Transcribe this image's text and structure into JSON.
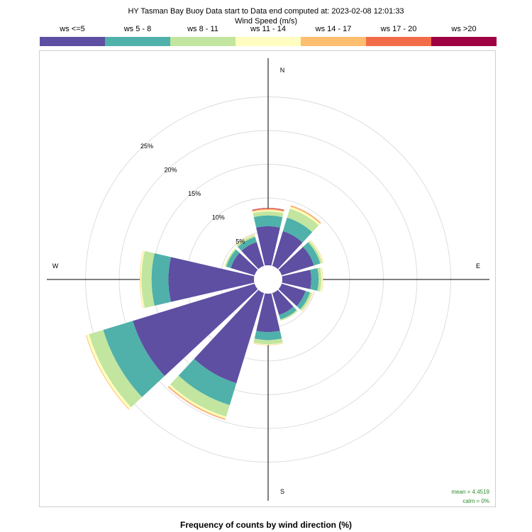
{
  "chart_data": {
    "type": "wind-rose",
    "title": "HY Tasman Bay Buoy Data start to Data end computed at: 2023-02-08 12:01:33",
    "legend_title": "Wind Speed (m/s)",
    "xlabel": "Frequency of counts by wind direction (%)",
    "legend_position": "top",
    "grid": true,
    "radial_unit": "%",
    "radial_max": 27,
    "radial_ticks": [
      5,
      10,
      15,
      20,
      25
    ],
    "radial_tick_labels": [
      "5%",
      "10%",
      "15%",
      "20%",
      "25%"
    ],
    "calm_radius_percent": 2.1,
    "compass_labels": {
      "N": "N",
      "E": "E",
      "S": "S",
      "W": "W"
    },
    "bins": [
      {
        "label": "ws <=5",
        "color": "#5E4FA2"
      },
      {
        "label": "ws 5 - 8",
        "color": "#4FB1AA"
      },
      {
        "label": "ws 8 - 11",
        "color": "#C2E59F"
      },
      {
        "label": "ws 11 - 14",
        "color": "#FFFDBF"
      },
      {
        "label": "ws 14 - 17",
        "color": "#FDBE6F"
      },
      {
        "label": "ws 17 - 20",
        "color": "#F26C4A"
      },
      {
        "label": "ws >20",
        "color": "#9E0142"
      }
    ],
    "directions": [
      0,
      30,
      60,
      90,
      120,
      150,
      180,
      210,
      240,
      270,
      300,
      330
    ],
    "cumulative_percent": [
      [
        5.8,
        7.4,
        8.0,
        8.2,
        8.35,
        8.45,
        8.5
      ],
      [
        5.4,
        7.5,
        8.9,
        9.2,
        9.35,
        9.4,
        9.4
      ],
      [
        5.0,
        6.0,
        6.3,
        6.45,
        6.5,
        6.5,
        6.5
      ],
      [
        4.3,
        5.4,
        5.8,
        6.0,
        6.05,
        6.05,
        6.05
      ],
      [
        3.7,
        4.4,
        4.7,
        4.8,
        4.85,
        4.85,
        4.85
      ],
      [
        3.4,
        4.1,
        4.3,
        4.35,
        4.35,
        4.35,
        4.35
      ],
      [
        5.7,
        6.9,
        7.5,
        7.6,
        7.65,
        7.65,
        7.65
      ],
      [
        14.0,
        17.4,
        19.2,
        19.5,
        19.65,
        19.7,
        19.7
      ],
      [
        18.9,
        23.5,
        25.7,
        26.1,
        26.2,
        26.2,
        26.2
      ],
      [
        12.7,
        15.2,
        16.7,
        16.9,
        16.95,
        16.95,
        16.95
      ],
      [
        3.7,
        4.4,
        4.6,
        4.7,
        4.7,
        4.7,
        4.7
      ],
      [
        3.7,
        4.5,
        4.8,
        4.9,
        4.95,
        4.95,
        4.95
      ]
    ],
    "stats": {
      "mean": "mean = 4.4519",
      "calm": "calm = 0%"
    }
  }
}
